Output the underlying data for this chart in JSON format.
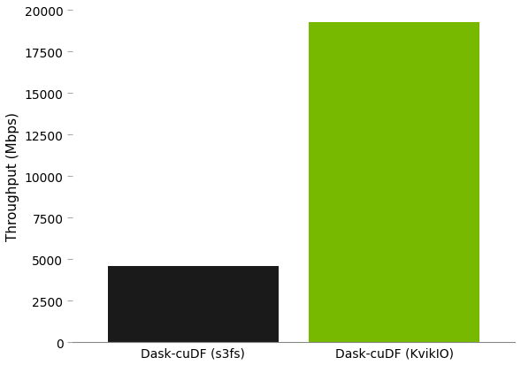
{
  "categories": [
    "Dask-cuDF (s3fs)",
    "Dask-cuDF (KvikIO)"
  ],
  "values": [
    4600,
    19300
  ],
  "bar_colors": [
    "#1a1a1a",
    "#76b900"
  ],
  "ylabel": "Throughput (Mbps)",
  "ylim": [
    0,
    20000
  ],
  "yticks": [
    0,
    2500,
    5000,
    7500,
    10000,
    12500,
    15000,
    17500,
    20000
  ],
  "background_color": "#ffffff",
  "bar_width": 0.85,
  "tick_fontsize": 10,
  "label_fontsize": 11,
  "xtick_fontsize": 10
}
